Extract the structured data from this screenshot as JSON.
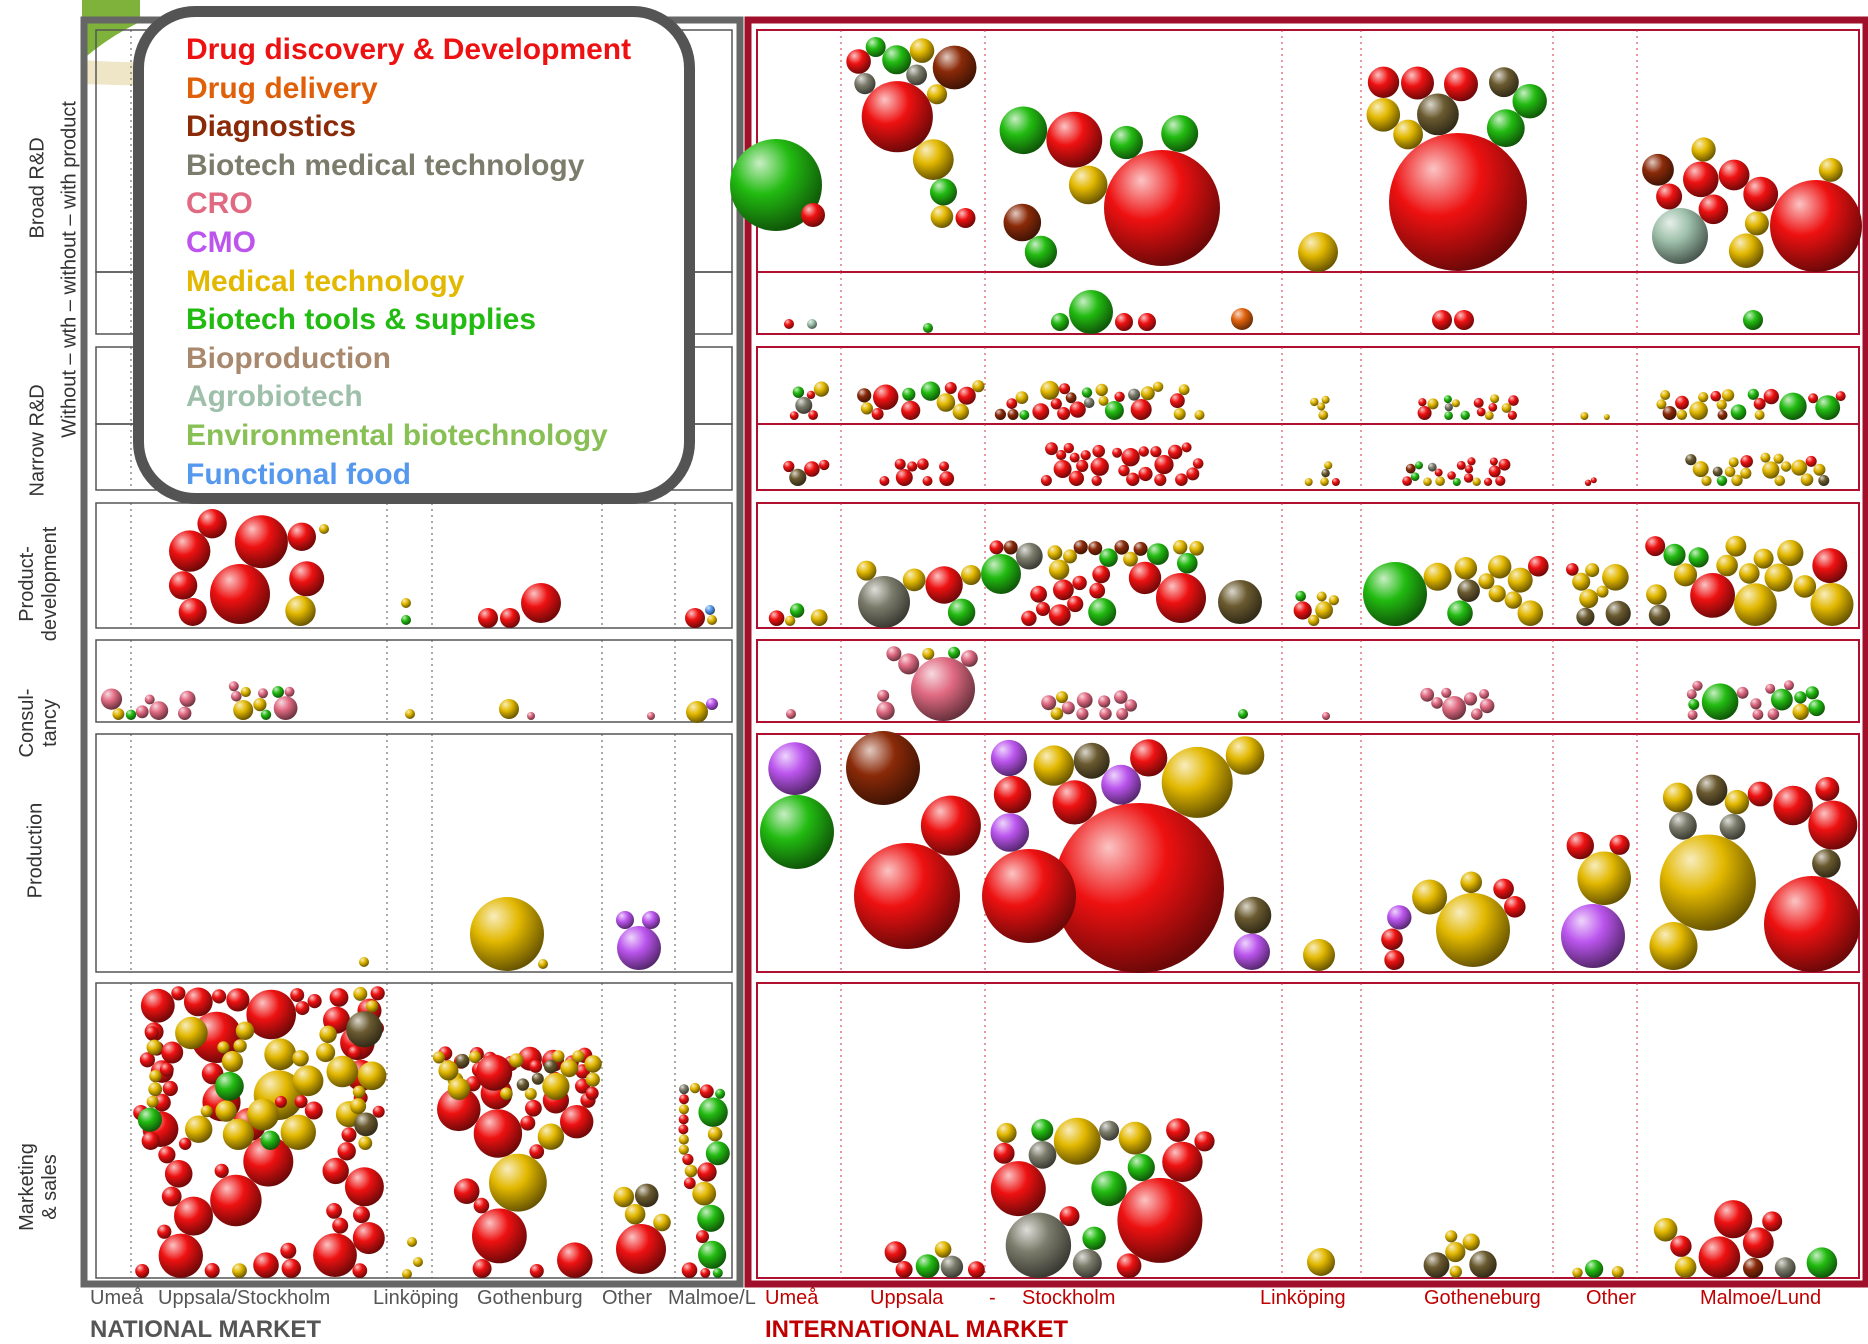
{
  "legend": [
    {
      "label": "Drug discovery & Development",
      "color": "#ee1111",
      "key": "dd"
    },
    {
      "label": "Drug delivery",
      "color": "#e0600a",
      "key": "ddel"
    },
    {
      "label": "Diagnostics",
      "color": "#8a2a08",
      "key": "diag"
    },
    {
      "label": "Biotech medical technology",
      "color": "#7c7c6c",
      "key": "bmt"
    },
    {
      "label": "CRO",
      "color": "#e06a82",
      "key": "cro"
    },
    {
      "label": "CMO",
      "color": "#bb55ee",
      "key": "cmo"
    },
    {
      "label": "Medical technology",
      "color": "#e2b800",
      "key": "med"
    },
    {
      "label": "Biotech tools & supplies",
      "color": "#22bb11",
      "key": "tools"
    },
    {
      "label": "Bioproduction",
      "color": "#a8896e",
      "key": "biop"
    },
    {
      "label": "Agrobiotech",
      "color": "#9ec0aa",
      "key": "agro"
    },
    {
      "label": "Environmental biotechnology",
      "color": "#88c055",
      "key": "env"
    },
    {
      "label": "Functional food",
      "color": "#5599ee",
      "key": "ff"
    }
  ],
  "row_labels": {
    "broad_rd": "Broad R&D",
    "narrow_rd": "Narrow R&D",
    "sublabel": "Without – wth – without – with product",
    "product_dev": [
      "Product-",
      "development"
    ],
    "consultancy": [
      "Consul-",
      "tancy"
    ],
    "production": "Production",
    "marketing": [
      "Marketing",
      "& sales"
    ]
  },
  "columns": {
    "national": [
      "Umeå",
      "Uppsala/Stockholm",
      "Linköping",
      "Gothenburg",
      "Other",
      "Malmoe/L"
    ],
    "international": [
      "Umeå",
      "Uppsala",
      "-",
      "Stockholm",
      "Linköping",
      "Gotheneburg",
      "Other",
      "Malmoe/Lund"
    ]
  },
  "markets": {
    "national": "NATIONAL MARKET",
    "international": "INTERNATIONAL MARKET"
  }
}
